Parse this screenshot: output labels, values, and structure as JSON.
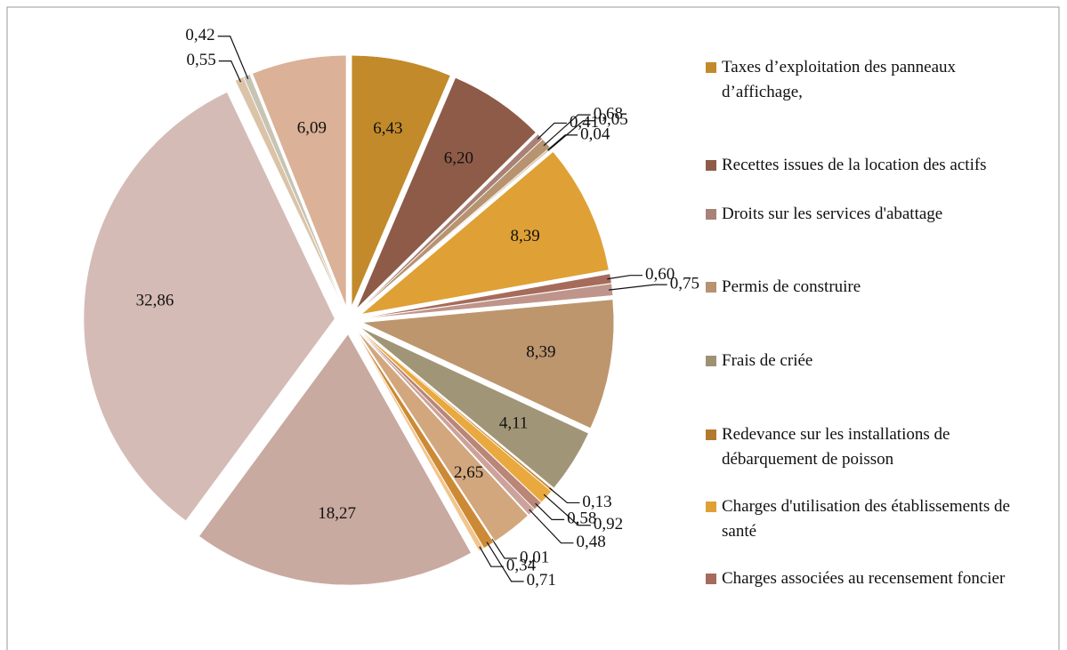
{
  "chart_data": {
    "type": "pie",
    "categories": [
      "Taxes d’exploitation des panneaux d’affichage,",
      "Recettes issues de la location des actifs",
      "Droits sur les services d'abattage",
      "Permis de construire",
      "Frais de criée",
      "Redevance sur les installations de débarquement de poisson",
      "Charges d'utilisation des établissements de santé",
      "Charges associées au recensement foncier",
      null,
      null,
      null,
      null,
      null,
      null,
      null,
      null,
      null,
      null,
      null,
      null,
      null,
      null,
      null,
      null
    ],
    "values": [
      6.43,
      6.2,
      0.41,
      0.68,
      0.04,
      0.05,
      8.39,
      0.6,
      0.75,
      8.39,
      4.11,
      0.13,
      0.92,
      0.58,
      0.48,
      2.65,
      0.01,
      0.71,
      0.34,
      18.27,
      32.86,
      0.55,
      0.42,
      6.09
    ],
    "value_labels": [
      "6,43",
      "6,20",
      "0,41",
      "0,68",
      "0,04",
      "0,05",
      "8,39",
      "0,60",
      "0,75",
      "8,39",
      "4,11",
      "0,13",
      "0,92",
      "0,58",
      "0,48",
      "2,65",
      "0,01",
      "0,71",
      "0,34",
      "18,27",
      "32,86",
      "0,55",
      "0,42",
      "6,09"
    ],
    "colors": [
      "#c28a2a",
      "#8e5b48",
      "#a88276",
      "#b79370",
      "#9e9275",
      "#b27a2e",
      "#dfa035",
      "#a66b5a",
      "#bf948a",
      "#bd966e",
      "#a09677",
      "#c48a3a",
      "#eaa93e",
      "#b98677",
      "#cca29b",
      "#d2a77d",
      "#b8ae96",
      "#cc8a36",
      "#f2c58c",
      "#c9aaa0",
      "#d5bbb5",
      "#dbc3a8",
      "#c8c4b4",
      "#dbb197"
    ],
    "legend": "right"
  }
}
